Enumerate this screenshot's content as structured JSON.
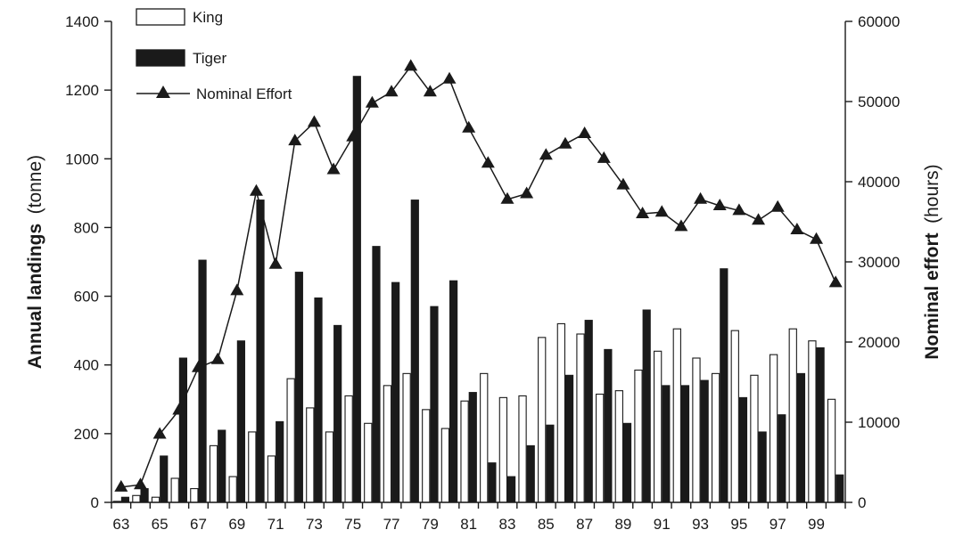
{
  "chart_data": {
    "type": "bar",
    "title": "",
    "x_tick_labels": [
      "63",
      "65",
      "67",
      "69",
      "71",
      "73",
      "75",
      "77",
      "79",
      "81",
      "83",
      "85",
      "87",
      "89",
      "91",
      "93",
      "95",
      "97",
      "99"
    ],
    "x": [
      63,
      64,
      65,
      66,
      67,
      68,
      69,
      70,
      71,
      72,
      73,
      74,
      75,
      76,
      77,
      78,
      79,
      80,
      81,
      82,
      83,
      84,
      85,
      86,
      87,
      88,
      89,
      90,
      91,
      92,
      93,
      94,
      95,
      96,
      97,
      98,
      99,
      100
    ],
    "series": [
      {
        "name": "King",
        "type": "bar",
        "axis": "left",
        "color": "#ffffff",
        "values": [
          3,
          20,
          15,
          70,
          40,
          165,
          75,
          205,
          135,
          360,
          275,
          205,
          310,
          230,
          340,
          375,
          270,
          215,
          295,
          375,
          305,
          310,
          480,
          520,
          490,
          315,
          325,
          385,
          440,
          505,
          420,
          375,
          500,
          370,
          430,
          505,
          470,
          300
        ]
      },
      {
        "name": "Tiger",
        "type": "bar",
        "axis": "left",
        "color": "#1a1a1a",
        "values": [
          15,
          40,
          135,
          420,
          705,
          210,
          470,
          880,
          235,
          670,
          595,
          515,
          1240,
          745,
          640,
          880,
          570,
          645,
          320,
          115,
          75,
          165,
          225,
          370,
          530,
          445,
          230,
          560,
          340,
          340,
          355,
          680,
          305,
          205,
          255,
          375,
          450,
          80
        ]
      },
      {
        "name": "Nominal Effort",
        "type": "line",
        "axis": "right",
        "color": "#1a1a1a",
        "marker": "triangle",
        "values": [
          1900,
          2200,
          8500,
          11500,
          16800,
          17800,
          26400,
          38800,
          29700,
          45100,
          47400,
          41500,
          45600,
          49800,
          51200,
          54400,
          51200,
          52800,
          46700,
          42300,
          37800,
          38500,
          43300,
          44700,
          46000,
          42900,
          39600,
          36000,
          36200,
          34400,
          37800,
          37000,
          36400,
          35200,
          36800,
          34000,
          32800,
          27400
        ]
      }
    ],
    "ylabel_left": "Annual landings",
    "ylabel_left_unit": "(tonne)",
    "ylabel_right": "Nominal effort",
    "ylabel_right_unit": "(hours)",
    "ylim_left": [
      0,
      1400
    ],
    "yticks_left": [
      "0",
      "200",
      "400",
      "600",
      "800",
      "1000",
      "1200",
      "1400"
    ],
    "ylim_right": [
      0,
      60000
    ],
    "yticks_right": [
      "0",
      "10000",
      "20000",
      "30000",
      "40000",
      "50000",
      "60000"
    ],
    "grid": false,
    "legend_position": "top-left",
    "legend": [
      {
        "label": "King"
      },
      {
        "label": "Tiger"
      },
      {
        "label": "Nominal Effort"
      }
    ]
  }
}
